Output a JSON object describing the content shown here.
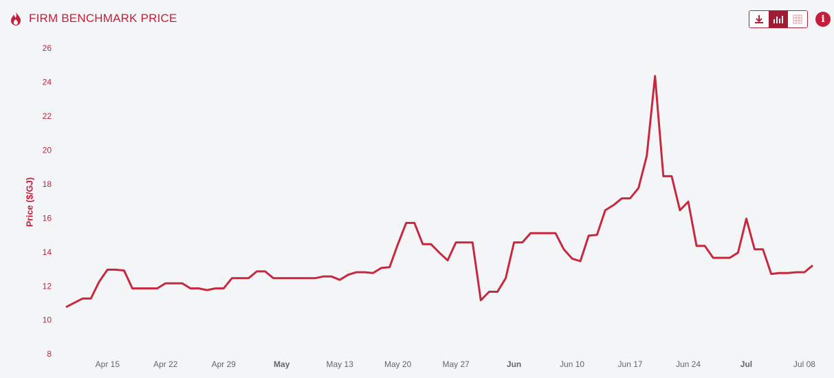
{
  "title": "FIRM BENCHMARK PRICE",
  "chart_data": {
    "type": "line",
    "y_label": "Price ($/GJ)",
    "x": [
      "Apr 10",
      "Apr 11",
      "Apr 12",
      "Apr 13",
      "Apr 14",
      "Apr 15",
      "Apr 16",
      "Apr 17",
      "Apr 18",
      "Apr 19",
      "Apr 20",
      "Apr 21",
      "Apr 22",
      "Apr 23",
      "Apr 24",
      "Apr 25",
      "Apr 26",
      "Apr 27",
      "Apr 28",
      "Apr 29",
      "Apr 30",
      "May 01",
      "May 02",
      "May 03",
      "May 04",
      "May 05",
      "May 06",
      "May 07",
      "May 08",
      "May 09",
      "May 10",
      "May 11",
      "May 12",
      "May 13",
      "May 14",
      "May 15",
      "May 16",
      "May 17",
      "May 18",
      "May 19",
      "May 20",
      "May 21",
      "May 22",
      "May 23",
      "May 24",
      "May 25",
      "May 26",
      "May 27",
      "May 28",
      "May 29",
      "May 30",
      "May 31",
      "Jun 01",
      "Jun 02",
      "Jun 03",
      "Jun 04",
      "Jun 05",
      "Jun 06",
      "Jun 07",
      "Jun 08",
      "Jun 09",
      "Jun 10",
      "Jun 11",
      "Jun 12",
      "Jun 13",
      "Jun 14",
      "Jun 15",
      "Jun 16",
      "Jun 17",
      "Jun 18",
      "Jun 19",
      "Jun 20",
      "Jun 21",
      "Jun 22",
      "Jun 23",
      "Jun 24",
      "Jun 25",
      "Jun 26",
      "Jun 27",
      "Jun 28",
      "Jun 29",
      "Jun 30",
      "Jul 01",
      "Jul 02",
      "Jul 03",
      "Jul 04",
      "Jul 05",
      "Jul 06",
      "Jul 07",
      "Jul 08",
      "Jul 09"
    ],
    "series": [
      {
        "color": "#c8283f",
        "values": [
          10.8,
          11.05,
          11.3,
          11.3,
          12.3,
          13.0,
          13.0,
          12.95,
          11.9,
          11.9,
          11.9,
          11.9,
          12.2,
          12.2,
          12.2,
          11.9,
          11.9,
          11.8,
          11.9,
          11.9,
          12.5,
          12.5,
          12.5,
          12.9,
          12.9,
          12.5,
          12.5,
          12.5,
          12.5,
          12.5,
          12.5,
          12.6,
          12.6,
          12.4,
          12.7,
          12.85,
          12.85,
          12.8,
          13.1,
          13.15,
          14.5,
          15.75,
          15.75,
          14.5,
          14.5,
          14.0,
          13.55,
          14.6,
          14.6,
          14.6,
          11.2,
          11.7,
          11.7,
          12.5,
          14.6,
          14.6,
          15.15,
          15.15,
          15.15,
          15.15,
          14.2,
          13.65,
          13.5,
          15.0,
          15.05,
          16.5,
          16.8,
          17.2,
          17.2,
          17.8,
          19.7,
          24.4,
          18.5,
          18.5,
          16.5,
          17.0,
          14.4,
          14.4,
          13.7,
          13.7,
          13.7,
          14.0,
          16.0,
          14.2,
          14.2,
          12.75,
          12.8,
          12.8,
          12.85,
          12.85,
          13.25
        ]
      }
    ],
    "ylim": [
      8,
      26
    ],
    "yticks": [
      8,
      10,
      12,
      14,
      16,
      18,
      20,
      22,
      24,
      26
    ],
    "xticks": [
      "Apr 15",
      "Apr 22",
      "Apr 29",
      {
        "value": "May 06",
        "label": "May"
      },
      "May 13",
      "May 20",
      "May 27",
      {
        "value": "Jun 03",
        "label": "Jun"
      },
      "Jun 10",
      "Jun 17",
      "Jun 24",
      {
        "value": "Jul 01",
        "label": "Jul"
      },
      "Jul 08"
    ],
    "grid": false
  }
}
